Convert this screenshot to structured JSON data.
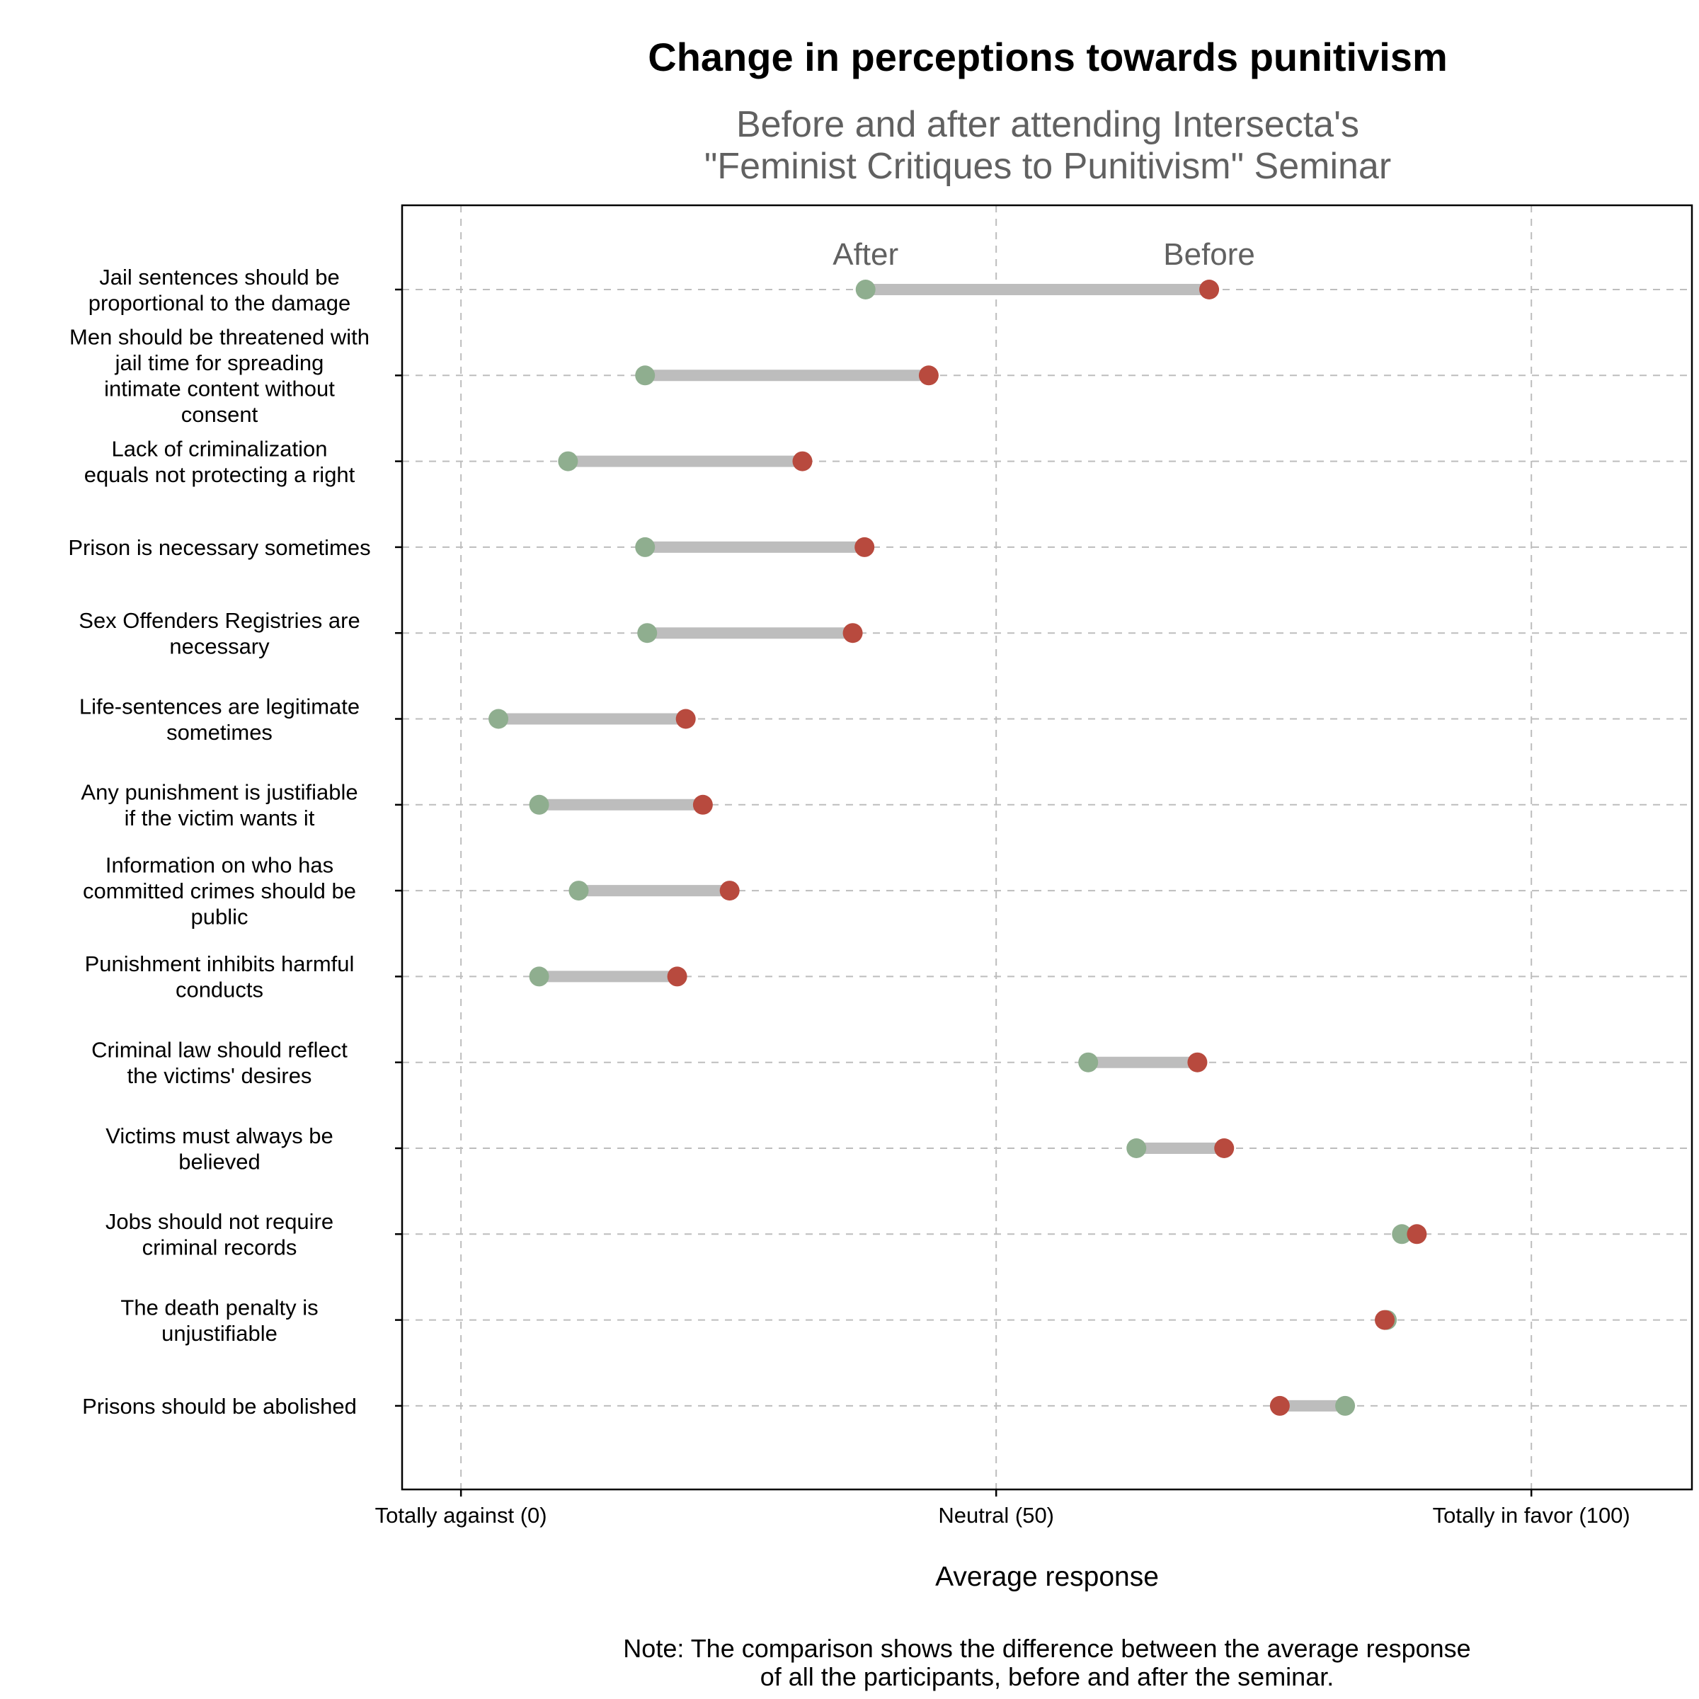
{
  "chart_data": {
    "type": "dumbbell",
    "title": "Change in perceptions towards punitivism",
    "subtitle": [
      "Before and after attending Intersecta's",
      "\"Feminist Critiques to Punitivism\" Seminar"
    ],
    "xlabel": "Average response",
    "xlim": [
      -5.5,
      115
    ],
    "x_ticks": [
      {
        "value": 0,
        "label": "Totally against (0)"
      },
      {
        "value": 50,
        "label": "Neutral (50)"
      },
      {
        "value": 100,
        "label": "Totally in favor (100)"
      }
    ],
    "annotations": {
      "after": "After",
      "before": "Before"
    },
    "note": [
      "Note: The comparison shows the difference between the average response",
      "of all the participants, before and after the seminar."
    ],
    "colors": {
      "after": "#8fae8f",
      "before": "#b84a3e",
      "segment": "#bdbdbd"
    },
    "grid": true,
    "categories": [
      {
        "label": [
          "Jail sentences should be",
          "proportional to the damage"
        ],
        "after": 37.8,
        "before": 69.9
      },
      {
        "label": [
          "Men should be threatened with",
          "jail time for spreading",
          "intimate content without",
          "consent"
        ],
        "after": 17.2,
        "before": 43.7
      },
      {
        "label": [
          "Lack of criminalization",
          "equals not protecting a right"
        ],
        "after": 10.0,
        "before": 31.9
      },
      {
        "label": [
          "Prison is necessary sometimes"
        ],
        "after": 17.2,
        "before": 37.7
      },
      {
        "label": [
          "Sex Offenders Registries are",
          "necessary"
        ],
        "after": 17.4,
        "before": 36.6
      },
      {
        "label": [
          "Life-sentences are legitimate",
          "sometimes"
        ],
        "after": 3.5,
        "before": 21.0
      },
      {
        "label": [
          "Any punishment is justifiable",
          "if the victim wants it"
        ],
        "after": 7.3,
        "before": 22.6
      },
      {
        "label": [
          "Information on who has",
          "committed crimes should be",
          "public"
        ],
        "after": 11.0,
        "before": 25.1
      },
      {
        "label": [
          "Punishment inhibits harmful",
          "conducts"
        ],
        "after": 7.3,
        "before": 20.2
      },
      {
        "label": [
          "Criminal law should reflect",
          "the victims' desires"
        ],
        "after": 58.6,
        "before": 68.8
      },
      {
        "label": [
          "Victims must always be",
          "believed"
        ],
        "after": 63.1,
        "before": 71.3
      },
      {
        "label": [
          "Jobs should not require",
          "criminal records"
        ],
        "after": 87.9,
        "before": 89.3
      },
      {
        "label": [
          "The death penalty is",
          "unjustifiable"
        ],
        "after": 86.5,
        "before": 86.3
      },
      {
        "label": [
          "Prisons should be abolished"
        ],
        "after": 82.6,
        "before": 76.5
      }
    ]
  }
}
